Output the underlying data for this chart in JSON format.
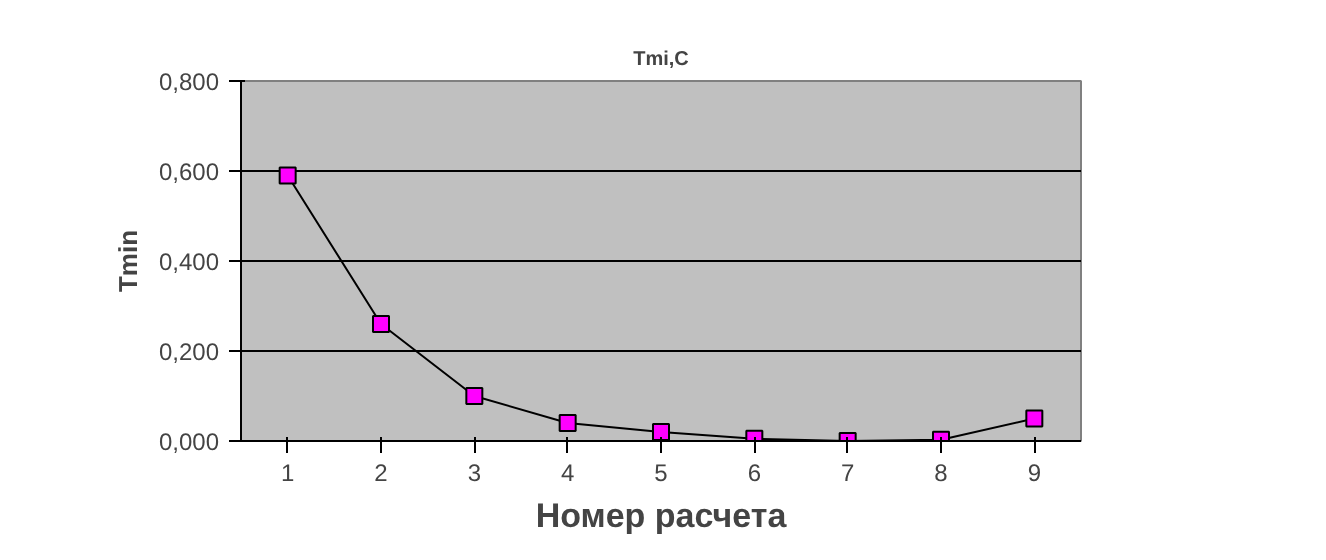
{
  "chart_data": {
    "type": "line",
    "title": "Tmi,C",
    "xlabel": "Номер расчета",
    "ylabel": "Tmin",
    "categories": [
      "1",
      "2",
      "3",
      "4",
      "5",
      "6",
      "7",
      "8",
      "9"
    ],
    "series": [
      {
        "color": "#ff00ff",
        "values": [
          0.59,
          0.26,
          0.1,
          0.04,
          0.02,
          0.005,
          0.0,
          0.003,
          0.05
        ]
      }
    ],
    "ylim": [
      0,
      0.8
    ],
    "yticks": [
      {
        "value": 0,
        "label": "0,000"
      },
      {
        "value": 0.2,
        "label": "0,200"
      },
      {
        "value": 0.4,
        "label": "0,400"
      },
      {
        "value": 0.6,
        "label": "0,600"
      },
      {
        "value": 0.8,
        "label": "0,800"
      }
    ],
    "grid": "y",
    "marker": "square"
  }
}
